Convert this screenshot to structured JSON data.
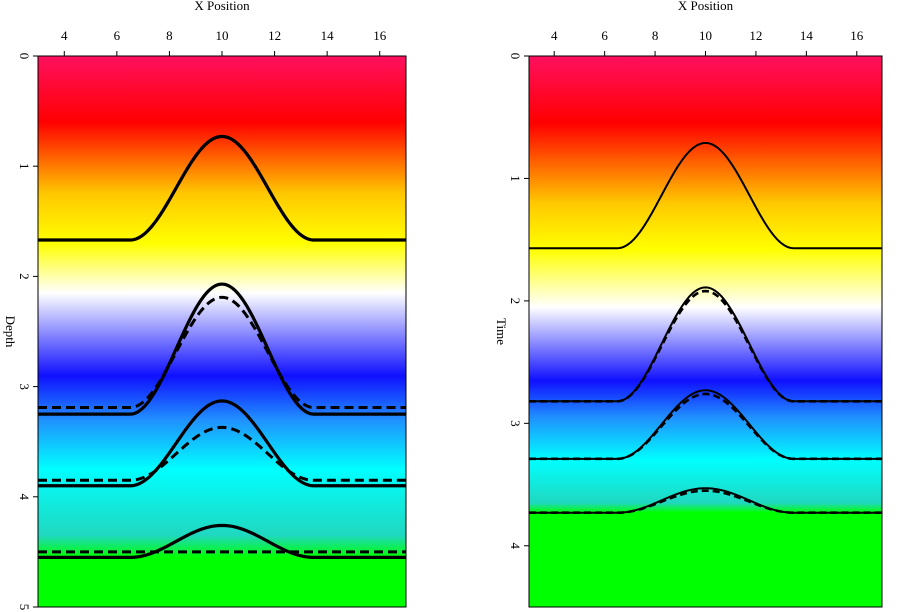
{
  "chart_data": [
    {
      "type": "line",
      "xlabel": "X Position",
      "ylabel": "Depth",
      "xlim": [
        3,
        17
      ],
      "ylim": [
        0,
        5
      ],
      "y_inverted": true,
      "x_ticks": [
        4,
        6,
        8,
        10,
        12,
        14,
        16
      ],
      "y_ticks": [
        0,
        1,
        2,
        3,
        4,
        5
      ],
      "background_gradient": [
        {
          "value": 0.0,
          "color": "#ff1060"
        },
        {
          "value": 0.6,
          "color": "#ff0000"
        },
        {
          "value": 1.25,
          "color": "#ffc800"
        },
        {
          "value": 1.7,
          "color": "#ffff00"
        },
        {
          "value": 2.15,
          "color": "#ffffff"
        },
        {
          "value": 2.9,
          "color": "#1010ff"
        },
        {
          "value": 3.3,
          "color": "#2090ff"
        },
        {
          "value": 3.75,
          "color": "#00ffff"
        },
        {
          "value": 4.35,
          "color": "#20d8c0"
        },
        {
          "value": 4.55,
          "color": "#00ff00"
        },
        {
          "value": 5.0,
          "color": "#00ff00"
        }
      ],
      "series": [
        {
          "style": "solid",
          "flat_y": 1.67,
          "peak_y": 0.73,
          "center_x": 10,
          "half_width": 3.5
        },
        {
          "style": "dashed",
          "flat_y": 1.67,
          "peak_y": 0.73,
          "center_x": 10,
          "half_width": 3.5
        },
        {
          "style": "solid",
          "flat_y": 3.25,
          "peak_y": 2.07,
          "center_x": 10,
          "half_width": 3.5
        },
        {
          "style": "dashed",
          "flat_y": 3.19,
          "peak_y": 2.19,
          "center_x": 10,
          "half_width": 3.5
        },
        {
          "style": "solid",
          "flat_y": 3.9,
          "peak_y": 3.13,
          "center_x": 10,
          "half_width": 3.5
        },
        {
          "style": "dashed",
          "flat_y": 3.85,
          "peak_y": 3.37,
          "center_x": 10,
          "half_width": 3.5
        },
        {
          "style": "solid",
          "flat_y": 4.55,
          "peak_y": 4.26,
          "center_x": 10,
          "half_width": 3.5
        },
        {
          "style": "dashed",
          "flat_y": 4.5,
          "peak_y": 4.5,
          "center_x": 10,
          "half_width": 3.5
        }
      ]
    },
    {
      "type": "line",
      "xlabel": "X Position",
      "ylabel": "Time",
      "xlim": [
        3,
        17
      ],
      "ylim": [
        0,
        4.5
      ],
      "y_inverted": true,
      "x_ticks": [
        4,
        6,
        8,
        10,
        12,
        14,
        16
      ],
      "y_ticks": [
        0,
        1,
        2,
        3,
        4
      ],
      "background_gradient": [
        {
          "value": 0.0,
          "color": "#ff1060"
        },
        {
          "value": 0.55,
          "color": "#ff0000"
        },
        {
          "value": 1.2,
          "color": "#ffc800"
        },
        {
          "value": 1.58,
          "color": "#ffff00"
        },
        {
          "value": 2.05,
          "color": "#ffffff"
        },
        {
          "value": 2.65,
          "color": "#1010ff"
        },
        {
          "value": 2.95,
          "color": "#2090ff"
        },
        {
          "value": 3.3,
          "color": "#00ffff"
        },
        {
          "value": 3.65,
          "color": "#20d8c0"
        },
        {
          "value": 3.73,
          "color": "#00ff00"
        },
        {
          "value": 4.5,
          "color": "#00ff00"
        }
      ],
      "series": [
        {
          "style": "solid",
          "flat_y": 1.57,
          "peak_y": 0.71,
          "center_x": 10,
          "half_width": 3.5
        },
        {
          "style": "solid",
          "flat_y": 2.82,
          "peak_y": 1.89,
          "center_x": 10,
          "half_width": 3.5
        },
        {
          "style": "dashed",
          "flat_y": 2.82,
          "peak_y": 1.92,
          "center_x": 10,
          "half_width": 3.5
        },
        {
          "style": "solid",
          "flat_y": 3.29,
          "peak_y": 2.73,
          "center_x": 10,
          "half_width": 3.5
        },
        {
          "style": "dashed",
          "flat_y": 3.29,
          "peak_y": 2.76,
          "center_x": 10,
          "half_width": 3.5
        },
        {
          "style": "solid",
          "flat_y": 3.73,
          "peak_y": 3.53,
          "center_x": 10,
          "half_width": 3.5
        },
        {
          "style": "dashed",
          "flat_y": 3.73,
          "peak_y": 3.55,
          "center_x": 10,
          "half_width": 3.5
        }
      ]
    }
  ]
}
